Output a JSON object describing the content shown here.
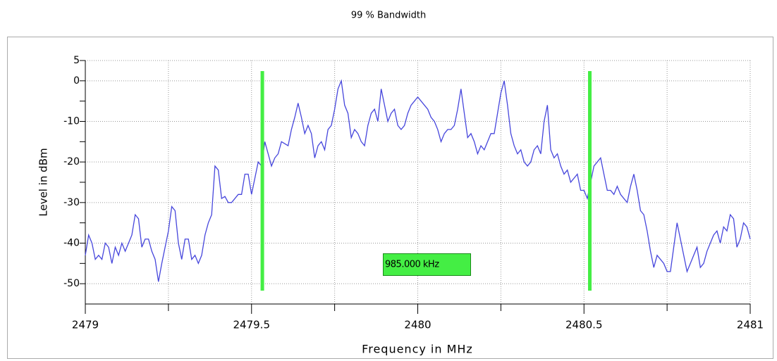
{
  "chart_data": {
    "type": "line",
    "title": "99 % Bandwidth",
    "xlabel": "Frequency in MHz",
    "ylabel": "Level in dBm",
    "xlim": [
      2479,
      2481
    ],
    "ylim": [
      -55,
      5
    ],
    "xticks": [
      2479,
      2479.5,
      2480,
      2480.5,
      2481
    ],
    "xminor": [
      2479.25,
      2479.75,
      2480.25,
      2480.75
    ],
    "yticks": [
      5,
      0,
      -10,
      -20,
      -30,
      -40,
      -50
    ],
    "yminor": [
      -45,
      -35,
      -25,
      -15,
      -5
    ],
    "grid": true,
    "series": [
      {
        "color": "#4646dc",
        "x": [
          2479,
          2479.01,
          2479.02,
          2479.03,
          2479.04,
          2479.05,
          2479.06,
          2479.07,
          2479.08,
          2479.09,
          2479.1,
          2479.11,
          2479.12,
          2479.13,
          2479.14,
          2479.15,
          2479.16,
          2479.17,
          2479.18,
          2479.19,
          2479.2,
          2479.21,
          2479.22,
          2479.23,
          2479.24,
          2479.25,
          2479.26,
          2479.27,
          2479.28,
          2479.29,
          2479.3,
          2479.31,
          2479.32,
          2479.33,
          2479.34,
          2479.35,
          2479.36,
          2479.37,
          2479.38,
          2479.39,
          2479.4,
          2479.41,
          2479.42,
          2479.43,
          2479.44,
          2479.45,
          2479.46,
          2479.47,
          2479.48,
          2479.49,
          2479.5,
          2479.51,
          2479.52,
          2479.53,
          2479.54,
          2479.55,
          2479.56,
          2479.57,
          2479.58,
          2479.59,
          2479.6,
          2479.61,
          2479.62,
          2479.63,
          2479.64,
          2479.65,
          2479.66,
          2479.67,
          2479.68,
          2479.69,
          2479.7,
          2479.71,
          2479.72,
          2479.73,
          2479.74,
          2479.75,
          2479.76,
          2479.77,
          2479.78,
          2479.79,
          2479.8,
          2479.81,
          2479.82,
          2479.83,
          2479.84,
          2479.85,
          2479.86,
          2479.87,
          2479.88,
          2479.89,
          2479.9,
          2479.91,
          2479.92,
          2479.93,
          2479.94,
          2479.95,
          2479.96,
          2479.97,
          2479.98,
          2479.99,
          2480,
          2480.01,
          2480.02,
          2480.03,
          2480.04,
          2480.05,
          2480.06,
          2480.07,
          2480.08,
          2480.09,
          2480.1,
          2480.11,
          2480.12,
          2480.13,
          2480.14,
          2480.15,
          2480.16,
          2480.17,
          2480.18,
          2480.19,
          2480.2,
          2480.21,
          2480.22,
          2480.23,
          2480.24,
          2480.25,
          2480.26,
          2480.27,
          2480.28,
          2480.29,
          2480.3,
          2480.31,
          2480.32,
          2480.33,
          2480.34,
          2480.35,
          2480.36,
          2480.37,
          2480.38,
          2480.39,
          2480.4,
          2480.41,
          2480.42,
          2480.43,
          2480.44,
          2480.45,
          2480.46,
          2480.47,
          2480.48,
          2480.49,
          2480.5,
          2480.51,
          2480.52,
          2480.53,
          2480.54,
          2480.55,
          2480.56,
          2480.57,
          2480.58,
          2480.59,
          2480.6,
          2480.61,
          2480.62,
          2480.63,
          2480.64,
          2480.65,
          2480.66,
          2480.67,
          2480.68,
          2480.69,
          2480.7,
          2480.71,
          2480.72,
          2480.73,
          2480.74,
          2480.75,
          2480.76,
          2480.77,
          2480.78,
          2480.79,
          2480.8,
          2480.81,
          2480.82,
          2480.83,
          2480.84,
          2480.85,
          2480.86,
          2480.87,
          2480.88,
          2480.89,
          2480.9,
          2480.91,
          2480.92,
          2480.93,
          2480.94,
          2480.95,
          2480.96,
          2480.97,
          2480.98,
          2480.99,
          2481
        ],
        "values": [
          -43,
          -38,
          -40,
          -44,
          -43,
          -44,
          -40,
          -41,
          -45,
          -41,
          -43,
          -40,
          -42,
          -40,
          -38,
          -33,
          -34,
          -41,
          -39,
          -39,
          -42,
          -44,
          -49.5,
          -45,
          -41,
          -37,
          -31,
          -32,
          -40,
          -44,
          -39,
          -39,
          -44,
          -43,
          -45,
          -43,
          -38,
          -35,
          -33,
          -21,
          -22,
          -29,
          -28.5,
          -30,
          -30,
          -29,
          -28,
          -28,
          -23,
          -23,
          -28,
          -24,
          -20,
          -21,
          -15,
          -18,
          -21,
          -19,
          -18,
          -15,
          -15.5,
          -16,
          -12,
          -9,
          -5.5,
          -9,
          -13,
          -11,
          -13,
          -19,
          -16,
          -15,
          -17,
          -12,
          -11,
          -7,
          -2,
          0,
          -6,
          -8,
          -14,
          -12,
          -13,
          -15,
          -16,
          -11,
          -8,
          -7,
          -10,
          -2,
          -6,
          -10,
          -8,
          -7,
          -11,
          -12,
          -11,
          -8,
          -6,
          -5,
          -4,
          -5,
          -6,
          -7,
          -9,
          -10,
          -12,
          -15,
          -13,
          -12,
          -12,
          -11,
          -7,
          -2,
          -8,
          -14,
          -13,
          -15,
          -18,
          -16,
          -17,
          -15,
          -13,
          -13,
          -8,
          -3,
          0,
          -6,
          -13,
          -16,
          -18,
          -17,
          -20,
          -21,
          -20,
          -17,
          -16,
          -18,
          -10,
          -6,
          -17,
          -19,
          -18,
          -21,
          -23,
          -22,
          -25,
          -24,
          -23,
          -27,
          -27,
          -29,
          -25,
          -21,
          -20,
          -19,
          -23,
          -27,
          -27,
          -28,
          -26,
          -28,
          -29,
          -30,
          -26,
          -23,
          -27,
          -32,
          -33,
          -37,
          -42,
          -46,
          -43,
          -44,
          -45,
          -47,
          -47,
          -41,
          -35,
          -39,
          -43,
          -47,
          -45,
          -43,
          -41,
          -46,
          -45,
          -42,
          -40,
          -38,
          -37,
          -40,
          -36,
          -37,
          -33,
          -34,
          -41,
          -39,
          -35,
          -36,
          -39
        ]
      }
    ],
    "markers": [
      {
        "x": 2479.5325
      },
      {
        "x": 2480.5175
      }
    ],
    "marker_color": "#44ee44",
    "annotation": "985.000 kHz"
  }
}
